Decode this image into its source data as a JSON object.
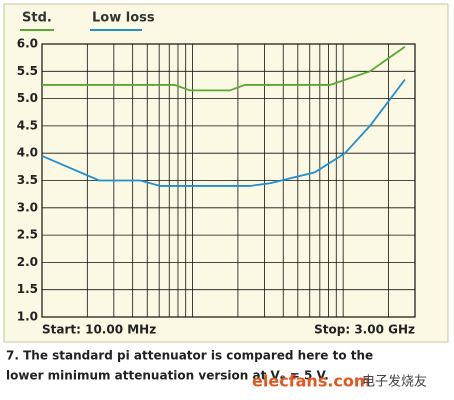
{
  "chart_data": {
    "type": "line",
    "series": [
      {
        "name": "Std.",
        "color": "#5aa832",
        "x": [
          10,
          76,
          96,
          177,
          223,
          817,
          1506,
          2573
        ],
        "values": [
          5.25,
          5.25,
          5.15,
          5.15,
          5.25,
          5.25,
          5.5,
          5.95
        ]
      },
      {
        "name": "Low loss",
        "color": "#1f8fd0",
        "x": [
          10,
          24,
          45,
          61,
          240,
          327,
          650,
          1028,
          1506,
          2573
        ],
        "values": [
          3.95,
          3.5,
          3.5,
          3.4,
          3.4,
          3.45,
          3.65,
          4.0,
          4.5,
          5.35
        ]
      }
    ],
    "xlog": true,
    "xlim": [
      10,
      3000
    ],
    "xticks": [
      10,
      20,
      30,
      40,
      50,
      60,
      70,
      80,
      90,
      100,
      200,
      300,
      400,
      500,
      600,
      700,
      800,
      900,
      1000,
      2000,
      3000
    ],
    "ylim": [
      1,
      6
    ],
    "yticks": [
      {
        "value": 1,
        "label": "1.0"
      },
      {
        "value": 1.5,
        "label": "1.5"
      },
      {
        "value": 2,
        "label": "2.0"
      },
      {
        "value": 2.5,
        "label": "2.5"
      },
      {
        "value": 3,
        "label": "3.0"
      },
      {
        "value": 3.5,
        "label": "3.5"
      },
      {
        "value": 4,
        "label": "4.0"
      },
      {
        "value": 4.5,
        "label": "4.5"
      },
      {
        "value": 5,
        "label": "5.0"
      },
      {
        "value": 5.5,
        "label": "5.5"
      },
      {
        "value": 6,
        "label": "6.0"
      }
    ],
    "grid": true,
    "start_label": "Start: 10.00 MHz",
    "stop_label": "Stop: 3.00 GHz",
    "caption": [
      "7. The standard pi attenuator is compared here to the",
      "lower minimum attenuation version at Vₑ = 5 V."
    ],
    "watermark": [
      "elecfans.com",
      "电子发烧友"
    ]
  }
}
